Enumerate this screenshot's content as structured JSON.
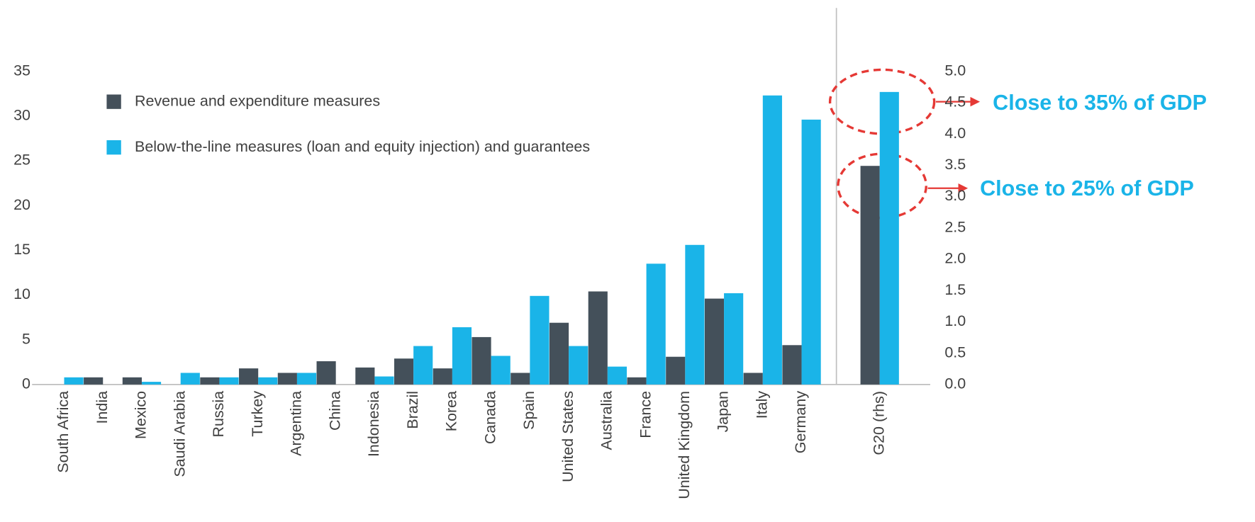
{
  "chart_data": [
    {
      "type": "bar",
      "categories": [
        "South Africa",
        "India",
        "Mexico",
        "Saudi Arabia",
        "Russia",
        "Turkey",
        "Argentina",
        "China",
        "Indonesia",
        "Brazil",
        "Korea",
        "Canada",
        "Spain",
        "United States",
        "Australia",
        "France",
        "United Kingdom",
        "Japan",
        "Italy",
        "Germany"
      ],
      "series": [
        {
          "name": "Revenue and expenditure measures",
          "color": "#44505a",
          "values": [
            0,
            0.8,
            0.8,
            0,
            0.8,
            1.8,
            1.3,
            2.6,
            1.9,
            2.9,
            1.8,
            5.3,
            1.3,
            6.9,
            10.4,
            0.8,
            3.1,
            9.6,
            1.3,
            4.4
          ]
        },
        {
          "name": "Below-the-line measures (loan and equity injection) and guarantees",
          "color": "#1ab4e8",
          "values": [
            0.8,
            0,
            0.3,
            1.3,
            0.8,
            0.8,
            1.3,
            0,
            0.9,
            4.3,
            6.4,
            3.2,
            9.9,
            4.3,
            2.0,
            13.5,
            15.6,
            10.2,
            32.3,
            29.6
          ]
        }
      ],
      "ylim": [
        0,
        35
      ],
      "yticks": [
        0,
        5,
        10,
        15,
        20,
        25,
        30,
        35
      ],
      "legend": "top-left"
    },
    {
      "type": "bar",
      "categories": [
        "G20 (rhs)"
      ],
      "series": [
        {
          "color": "#44505a",
          "values": [
            3.49
          ],
          "axis": "y2"
        },
        {
          "color": "#1ab4e8",
          "values": [
            4.67
          ],
          "axis": "y2"
        }
      ],
      "y2lim": [
        0,
        5
      ],
      "y2ticks": [
        {
          "value": 0,
          "label": "0.0"
        },
        {
          "value": 0.5,
          "label": "0.5"
        },
        {
          "value": 1,
          "label": "1.0"
        },
        {
          "value": 1.5,
          "label": "1.5"
        },
        {
          "value": 2,
          "label": "2.0"
        },
        {
          "value": 2.5,
          "label": "2.5"
        },
        {
          "value": 3,
          "label": "3.0"
        },
        {
          "value": 3.5,
          "label": "3.5"
        },
        {
          "value": 4,
          "label": "4.0"
        },
        {
          "value": 4.5,
          "label": "4.5"
        },
        {
          "value": 5,
          "label": "5.0"
        }
      ],
      "annotations": [
        "Close to 35% of GDP",
        "Close to 25% of GDP"
      ]
    }
  ]
}
